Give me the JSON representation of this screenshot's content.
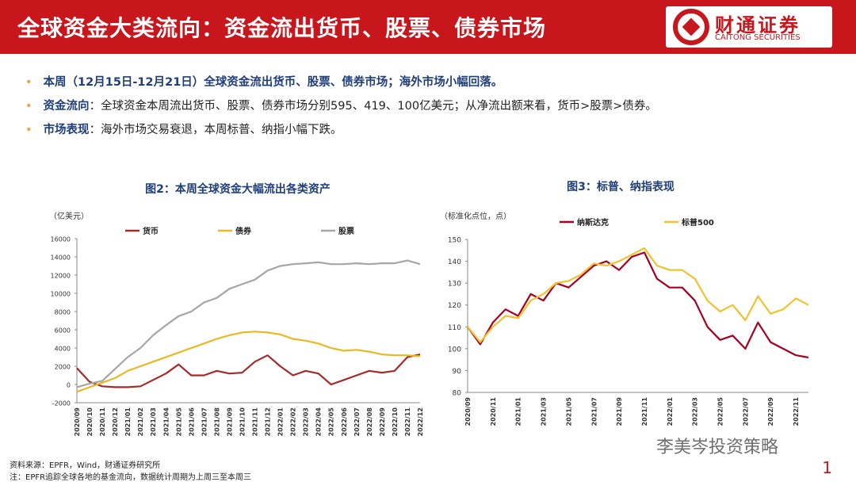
{
  "header": {
    "title": "全球资金大类流向：资金流出货币、股票、债券市场",
    "logo_cn": "财通证券",
    "logo_en": "CAITONG SECURITIES"
  },
  "bullets": [
    {
      "label": "本周（12月15日-12月21日）全球资金流出货币、股票、债券市场；海外市场小幅回落。",
      "text": ""
    },
    {
      "label": "资金流向",
      "text": "：全球资金本周流出货币、股票、债券市场分别595、419、100亿美元；从净流出额来看，货币>股票>债券。"
    },
    {
      "label": "市场表现",
      "text": "：海外市场交易衰退，本周标普、纳指小幅下跌。"
    }
  ],
  "footer": {
    "source": "资料来源：EPFR，Wind，财通证券研究所",
    "note": "注：EPFR追踪全球各地的基金流向，数据统计周期为上周三至本周三",
    "page": "1",
    "watermark": "李美岑投资策略"
  },
  "chart_data": [
    {
      "type": "line",
      "title": "图2：本周全球资金大幅流出各类资产",
      "y_label": "（亿美元）",
      "categories": [
        "2020/09",
        "2020/10",
        "2020/11",
        "2020/12",
        "2021/01",
        "2021/02",
        "2021/03",
        "2021/04",
        "2021/05",
        "2021/06",
        "2021/07",
        "2021/08",
        "2021/09",
        "2021/10",
        "2021/11",
        "2021/12",
        "2022/01",
        "2022/02",
        "2022/03",
        "2022/04",
        "2022/05",
        "2022/06",
        "2022/07",
        "2022/08",
        "2022/09",
        "2022/10",
        "2022/11",
        "2022/12"
      ],
      "series": [
        {
          "name": "货币",
          "color": "#a52a2a",
          "values": [
            1800,
            300,
            -200,
            -300,
            -300,
            -200,
            500,
            1200,
            2200,
            1000,
            1000,
            1500,
            1200,
            1300,
            2500,
            3200,
            2000,
            1000,
            1500,
            1200,
            0,
            500,
            1000,
            1500,
            1300,
            1500,
            3000,
            3300
          ]
        },
        {
          "name": "债券",
          "color": "#e8b923",
          "values": [
            -800,
            -300,
            200,
            700,
            1500,
            2000,
            2500,
            3000,
            3500,
            4000,
            4500,
            5000,
            5400,
            5700,
            5800,
            5700,
            5500,
            5000,
            4800,
            4500,
            4000,
            3700,
            3800,
            3600,
            3300,
            3200,
            3200,
            3100
          ]
        },
        {
          "name": "股票",
          "color": "#a6a6a6",
          "values": [
            -300,
            100,
            400,
            1700,
            3000,
            4000,
            5400,
            6500,
            7500,
            8000,
            9000,
            9500,
            10500,
            11000,
            11500,
            12500,
            13000,
            13200,
            13300,
            13400,
            13200,
            13200,
            13300,
            13200,
            13300,
            13300,
            13600,
            13200
          ]
        }
      ],
      "ylim": [
        -2000,
        16000
      ],
      "yticks": [
        -2000,
        0,
        2000,
        4000,
        6000,
        8000,
        10000,
        12000,
        14000,
        16000
      ],
      "legend": "top"
    },
    {
      "type": "line",
      "title": "图3：标普、纳指表现",
      "y_label": "（标准化点位，点）",
      "categories": [
        "2020/09",
        null,
        "2020/11",
        null,
        "2021/01",
        null,
        "2021/03",
        null,
        "2021/05",
        null,
        "2021/07",
        null,
        "2021/09",
        null,
        "2021/11",
        null,
        "2022/01",
        null,
        "2022/03",
        null,
        "2022/05",
        null,
        "2022/07",
        null,
        "2022/09",
        null,
        "2022/11",
        null
      ],
      "series": [
        {
          "name": "纳斯达克",
          "color": "#a50021",
          "values": [
            110,
            102,
            112,
            118,
            115,
            125,
            122,
            130,
            128,
            133,
            138,
            140,
            136,
            142,
            144,
            132,
            128,
            128,
            122,
            110,
            104,
            106,
            100,
            112,
            103,
            100,
            97,
            96
          ]
        },
        {
          "name": "标普500",
          "color": "#f2c12e",
          "values": [
            110,
            103,
            110,
            115,
            114,
            122,
            125,
            130,
            131,
            134,
            139,
            138,
            140,
            143,
            146,
            138,
            136,
            136,
            132,
            122,
            117,
            120,
            113,
            124,
            116,
            118,
            123,
            120
          ]
        }
      ],
      "ylim": [
        80,
        150
      ],
      "yticks": [
        80,
        90,
        100,
        110,
        120,
        130,
        140,
        150
      ],
      "legend": "top"
    }
  ]
}
